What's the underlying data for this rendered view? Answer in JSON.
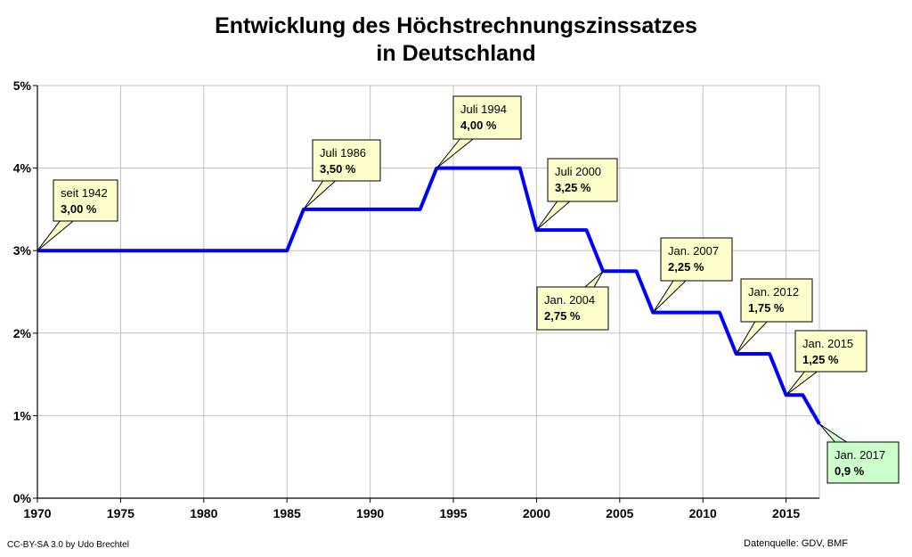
{
  "chart_data": {
    "type": "line",
    "title_lines": [
      "Entwicklung des Höchstrechnungszinssatzes",
      "in Deutschland"
    ],
    "xlabel": "",
    "ylabel": "",
    "xlim": [
      1970,
      2017
    ],
    "ylim": [
      0,
      5
    ],
    "x_ticks": [
      1970,
      1975,
      1980,
      1985,
      1990,
      1995,
      2000,
      2005,
      2010,
      2015
    ],
    "y_ticks": [
      {
        "value": 0,
        "label": "0%"
      },
      {
        "value": 1,
        "label": "1%"
      },
      {
        "value": 2,
        "label": "2%"
      },
      {
        "value": 3,
        "label": "3%"
      },
      {
        "value": 4,
        "label": "4%"
      },
      {
        "value": 5,
        "label": "5%"
      }
    ],
    "grid": true,
    "line_color": "#0000ff",
    "series": [
      {
        "points": [
          [
            1970,
            3.0
          ],
          [
            1985,
            3.0
          ],
          [
            1986,
            3.5
          ],
          [
            1993,
            3.5
          ],
          [
            1994,
            4.0
          ],
          [
            1999,
            4.0
          ],
          [
            2000,
            3.25
          ],
          [
            2003,
            3.25
          ],
          [
            2004,
            2.75
          ],
          [
            2006,
            2.75
          ],
          [
            2007,
            2.25
          ],
          [
            2011,
            2.25
          ],
          [
            2012,
            1.75
          ],
          [
            2014,
            1.75
          ],
          [
            2015,
            1.25
          ],
          [
            2016,
            1.25
          ],
          [
            2017,
            0.9
          ]
        ]
      }
    ],
    "annotations": [
      {
        "date": "seit 1942",
        "value": "3,00 %",
        "x": 1970,
        "y": 3.0,
        "fill": "#ffffcc"
      },
      {
        "date": "Juli 1986",
        "value": "3,50 %",
        "x": 1986,
        "y": 3.5,
        "fill": "#ffffcc"
      },
      {
        "date": "Juli 1994",
        "value": "4,00 %",
        "x": 1994,
        "y": 4.0,
        "fill": "#ffffcc"
      },
      {
        "date": "Juli 2000",
        "value": "3,25 %",
        "x": 2000,
        "y": 3.25,
        "fill": "#ffffcc"
      },
      {
        "date": "Jan. 2004",
        "value": "2,75 %",
        "x": 2004,
        "y": 2.75,
        "fill": "#ffffcc"
      },
      {
        "date": "Jan. 2007",
        "value": "2,25 %",
        "x": 2007,
        "y": 2.25,
        "fill": "#ffffcc"
      },
      {
        "date": "Jan. 2012",
        "value": "1,75 %",
        "x": 2012,
        "y": 1.75,
        "fill": "#ffffcc"
      },
      {
        "date": "Jan. 2015",
        "value": "1,25 %",
        "x": 2015,
        "y": 1.25,
        "fill": "#ffffcc"
      },
      {
        "date": "Jan. 2017",
        "value": "0,9 %",
        "x": 2017,
        "y": 0.9,
        "fill": "#ccffcc"
      }
    ]
  },
  "footer": {
    "license": "CC-BY-SA  3.0 by Udo Brechtel",
    "source": "Datenquelle: GDV, BMF"
  }
}
